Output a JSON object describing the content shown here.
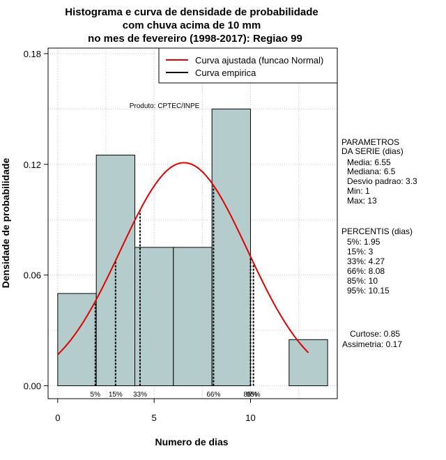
{
  "title_lines": [
    "Histograma e curva de densidade de probabilidade",
    "com chuva acima de 10 mm",
    "no mes de fevereiro (1998-2017): Regiao 99"
  ],
  "chart_data": {
    "type": "bar",
    "title": "Histograma e curva de densidade de probabilidade com chuva acima de 10 mm no mes de fevereiro (1998-2017): Regiao 99",
    "xlabel": "Numero de dias",
    "ylabel": "Densidade de probabilidade",
    "xlim": [
      -0.5,
      14.5
    ],
    "ylim": [
      -0.007,
      0.183
    ],
    "x_ticks": [
      0,
      5,
      10
    ],
    "y_ticks": [
      0.0,
      0.06,
      0.12,
      0.18
    ],
    "y_tick_labels": [
      "0.00",
      "0.06",
      "0.12",
      "0.18"
    ],
    "grid": true,
    "bins": [
      {
        "x0": 0,
        "x1": 2,
        "density": 0.05
      },
      {
        "x0": 2,
        "x1": 4,
        "density": 0.125
      },
      {
        "x0": 4,
        "x1": 6,
        "density": 0.075
      },
      {
        "x0": 6,
        "x1": 8,
        "density": 0.075
      },
      {
        "x0": 8,
        "x1": 10,
        "density": 0.15
      },
      {
        "x0": 10,
        "x1": 12,
        "density": 0
      },
      {
        "x0": 12,
        "x1": 14,
        "density": 0.025
      }
    ],
    "bar_color": "#b4cccc",
    "normal_curve": {
      "mean": 6.55,
      "sd": 3.3,
      "x_from": 0,
      "x_to": 13,
      "color": "#e00000"
    },
    "percentiles": [
      {
        "label": "5%",
        "x": 1.95
      },
      {
        "label": "15%",
        "x": 3
      },
      {
        "label": "33%",
        "x": 4.27
      },
      {
        "label": "66%",
        "x": 8.08
      },
      {
        "label": "85%",
        "x": 10
      },
      {
        "label": "95%",
        "x": 10.15
      }
    ],
    "legend": [
      {
        "name": "Curva ajustada (funcao Normal)",
        "color": "#e00000"
      },
      {
        "name": "Curva empirica",
        "color": "#000000"
      }
    ],
    "legend_position": "top-right"
  },
  "product_label": "Produto: CPTEC/INPE",
  "parametros": {
    "heading": [
      "PARAMETROS",
      "DA SERIE (dias)"
    ],
    "lines": [
      "Media: 6.55",
      "Mediana: 6.5",
      "Desvio padrao: 3.3",
      "Min: 1",
      "Max: 13"
    ]
  },
  "percentis": {
    "heading": "PERCENTIS (dias)",
    "lines": [
      "5%: 1.95",
      "15%: 3",
      "33%: 4.27",
      "66%: 8.08",
      "85%: 10",
      "95%: 10.15"
    ]
  },
  "shape": {
    "lines": [
      "Curtose: 0.85",
      "Assimetria: 0.17"
    ]
  }
}
